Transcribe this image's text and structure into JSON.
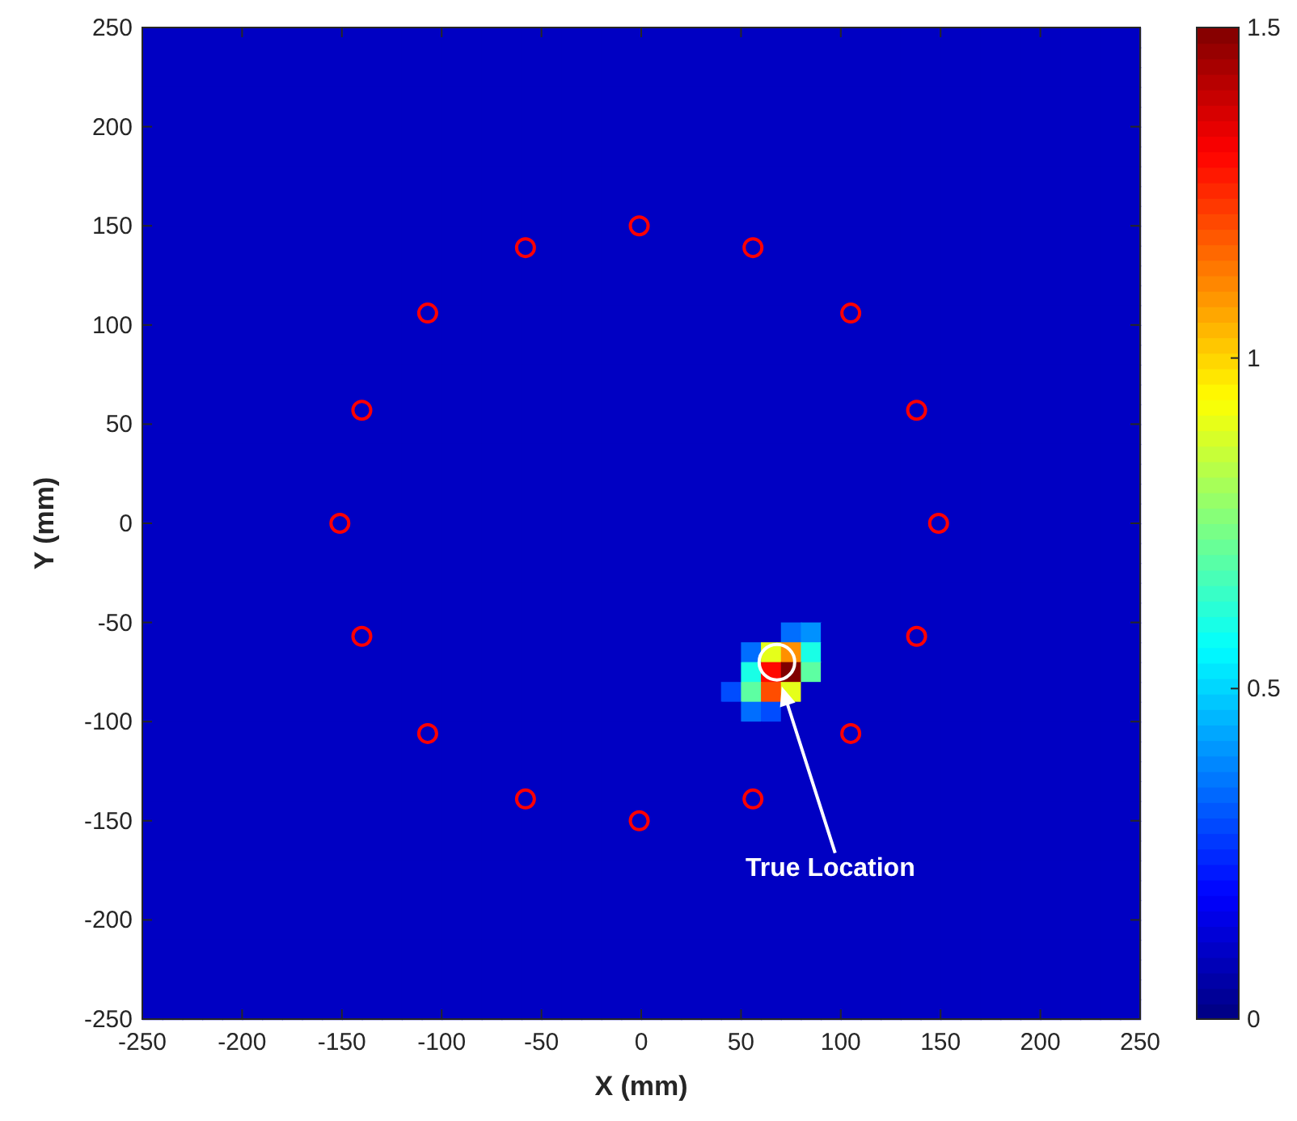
{
  "chart_data": {
    "type": "heatmap",
    "xlabel": "X (mm)",
    "ylabel": "Y (mm)",
    "x": [
      -245,
      -235,
      -225,
      -215,
      -205,
      -195,
      -185,
      -175,
      -165,
      -155,
      -145,
      -135,
      -125,
      -115,
      -105,
      -95,
      -85,
      -75,
      -65,
      -55,
      -45,
      -35,
      -25,
      -15,
      -5,
      5,
      15,
      25,
      35,
      45,
      55,
      65,
      75,
      85,
      95,
      105,
      115,
      125,
      135,
      145,
      155,
      165,
      175,
      185,
      195,
      205,
      215,
      225,
      235,
      245
    ],
    "y": [
      245,
      235,
      225,
      215,
      205,
      195,
      185,
      175,
      165,
      155,
      145,
      135,
      125,
      115,
      105,
      95,
      85,
      75,
      65,
      55,
      45,
      35,
      25,
      15,
      5,
      -5,
      -15,
      -25,
      -35,
      -45,
      -55,
      -65,
      -75,
      -85,
      -95,
      -105,
      -115,
      -125,
      -135,
      -145,
      -155,
      -165,
      -175,
      -185,
      -195,
      -205,
      -215,
      -225,
      -235,
      -245
    ],
    "xlim": [
      -250,
      250
    ],
    "xticks": [
      -250,
      -200,
      -150,
      -100,
      -50,
      0,
      50,
      100,
      150,
      200,
      250
    ],
    "ylim": [
      -250,
      250
    ],
    "yticks": [
      -250,
      -200,
      -150,
      -100,
      -50,
      0,
      50,
      100,
      150,
      200,
      250
    ],
    "clim": [
      0,
      1.5
    ],
    "cticks": [
      0,
      0.5,
      1,
      1.5
    ],
    "grid": false,
    "marker": "circle",
    "cells": [
      [
        0.1,
        0.1,
        0.1,
        0.1,
        0.1,
        0.1,
        0.1,
        0.1,
        0.1,
        0.1,
        0.1,
        0.1,
        0.1,
        0.1,
        0.1,
        0.1,
        0.1,
        0.1,
        0.1,
        0.1,
        0.1,
        0.1,
        0.1,
        0.1,
        0.1,
        0.1,
        0.1,
        0.1,
        0.1,
        0.1,
        0.1,
        0.1,
        0.1,
        0.1,
        0.1,
        0.1,
        0.1,
        0.1,
        0.1,
        0.1,
        0.1,
        0.1,
        0.1,
        0.1,
        0.1,
        0.1,
        0.1,
        0.1,
        0.1,
        0.1
      ],
      [
        0.1,
        0.1,
        0.1,
        0.1,
        0.1,
        0.1,
        0.1,
        0.1,
        0.1,
        0.1,
        0.1,
        0.1,
        0.1,
        0.1,
        0.1,
        0.1,
        0.1,
        0.1,
        0.1,
        0.1,
        0.1,
        0.1,
        0.1,
        0.1,
        0.1,
        0.1,
        0.1,
        0.1,
        0.1,
        0.1,
        0.1,
        0.1,
        0.1,
        0.1,
        0.1,
        0.1,
        0.1,
        0.1,
        0.1,
        0.1,
        0.1,
        0.1,
        0.1,
        0.1,
        0.1,
        0.1,
        0.1,
        0.1,
        0.1,
        0.1
      ],
      [
        0.1,
        0.1,
        0.1,
        0.1,
        0.1,
        0.1,
        0.1,
        0.1,
        0.1,
        0.1,
        0.1,
        0.1,
        0.1,
        0.1,
        0.1,
        0.1,
        0.1,
        0.1,
        0.1,
        0.1,
        0.1,
        0.1,
        0.1,
        0.1,
        0.1,
        0.1,
        0.1,
        0.1,
        0.1,
        0.1,
        0.1,
        0.1,
        0.1,
        0.1,
        0.1,
        0.1,
        0.1,
        0.1,
        0.1,
        0.1,
        0.1,
        0.1,
        0.1,
        0.1,
        0.1,
        0.1,
        0.1,
        0.1,
        0.1,
        0.1
      ],
      [
        0.1,
        0.1,
        0.1,
        0.1,
        0.1,
        0.1,
        0.1,
        0.1,
        0.1,
        0.1,
        0.1,
        0.1,
        0.1,
        0.1,
        0.1,
        0.1,
        0.1,
        0.1,
        0.1,
        0.1,
        0.1,
        0.1,
        0.1,
        0.1,
        0.1,
        0.1,
        0.1,
        0.1,
        0.1,
        0.1,
        0.1,
        0.1,
        0.1,
        0.1,
        0.1,
        0.1,
        0.1,
        0.1,
        0.1,
        0.1,
        0.1,
        0.1,
        0.1,
        0.1,
        0.1,
        0.1,
        0.1,
        0.1,
        0.1,
        0.1
      ],
      [
        0.1,
        0.1,
        0.1,
        0.1,
        0.1,
        0.1,
        0.1,
        0.1,
        0.1,
        0.1,
        0.1,
        0.1,
        0.1,
        0.1,
        0.1,
        0.1,
        0.1,
        0.1,
        0.1,
        0.1,
        0.1,
        0.1,
        0.1,
        0.1,
        0.1,
        0.1,
        0.1,
        0.1,
        0.1,
        0.1,
        0.1,
        0.1,
        0.1,
        0.1,
        0.1,
        0.1,
        0.1,
        0.1,
        0.1,
        0.1,
        0.1,
        0.1,
        0.1,
        0.1,
        0.1,
        0.1,
        0.1,
        0.1,
        0.1,
        0.1
      ],
      [
        0.1,
        0.1,
        0.1,
        0.1,
        0.1,
        0.1,
        0.1,
        0.1,
        0.1,
        0.1,
        0.1,
        0.1,
        0.1,
        0.1,
        0.1,
        0.1,
        0.1,
        0.1,
        0.1,
        0.1,
        0.1,
        0.1,
        0.1,
        0.1,
        0.1,
        0.1,
        0.1,
        0.1,
        0.1,
        0.1,
        0.1,
        0.1,
        0.1,
        0.1,
        0.1,
        0.1,
        0.1,
        0.1,
        0.1,
        0.1,
        0.1,
        0.1,
        0.1,
        0.1,
        0.1,
        0.1,
        0.1,
        0.1,
        0.1,
        0.1
      ],
      [
        0.1,
        0.1,
        0.1,
        0.1,
        0.1,
        0.1,
        0.1,
        0.1,
        0.1,
        0.1,
        0.1,
        0.1,
        0.1,
        0.1,
        0.1,
        0.1,
        0.1,
        0.1,
        0.1,
        0.1,
        0.1,
        0.1,
        0.1,
        0.1,
        0.1,
        0.1,
        0.1,
        0.1,
        0.1,
        0.1,
        0.1,
        0.1,
        0.1,
        0.1,
        0.1,
        0.1,
        0.1,
        0.1,
        0.1,
        0.1,
        0.1,
        0.1,
        0.1,
        0.1,
        0.1,
        0.1,
        0.1,
        0.1,
        0.1,
        0.1
      ],
      [
        0.1,
        0.1,
        0.1,
        0.1,
        0.1,
        0.1,
        0.1,
        0.1,
        0.1,
        0.1,
        0.1,
        0.1,
        0.1,
        0.1,
        0.1,
        0.1,
        0.1,
        0.1,
        0.1,
        0.1,
        0.1,
        0.1,
        0.1,
        0.1,
        0.1,
        0.1,
        0.1,
        0.1,
        0.1,
        0.1,
        0.1,
        0.1,
        0.1,
        0.1,
        0.1,
        0.1,
        0.1,
        0.1,
        0.1,
        0.1,
        0.1,
        0.1,
        0.1,
        0.1,
        0.1,
        0.1,
        0.1,
        0.1,
        0.1,
        0.1
      ],
      [
        0.1,
        0.1,
        0.1,
        0.1,
        0.1,
        0.1,
        0.1,
        0.1,
        0.1,
        0.1,
        0.1,
        0.1,
        0.1,
        0.1,
        0.1,
        0.1,
        0.1,
        0.1,
        0.1,
        0.1,
        0.1,
        0.1,
        0.1,
        0.1,
        0.1,
        0.1,
        0.1,
        0.1,
        0.1,
        0.1,
        0.1,
        0.1,
        0.1,
        0.1,
        0.1,
        0.1,
        0.1,
        0.1,
        0.1,
        0.1,
        0.1,
        0.1,
        0.1,
        0.1,
        0.1,
        0.1,
        0.1,
        0.1,
        0.1,
        0.1
      ],
      [
        0.1,
        0.1,
        0.1,
        0.1,
        0.1,
        0.1,
        0.1,
        0.1,
        0.1,
        0.1,
        0.1,
        0.1,
        0.1,
        0.1,
        0.1,
        0.1,
        0.1,
        0.1,
        0.1,
        0.1,
        0.1,
        0.1,
        0.1,
        0.1,
        0.1,
        0.1,
        0.1,
        0.1,
        0.1,
        0.1,
        0.1,
        0.1,
        0.1,
        0.1,
        0.1,
        0.1,
        0.1,
        0.1,
        0.1,
        0.1,
        0.1,
        0.1,
        0.1,
        0.1,
        0.1,
        0.1,
        0.1,
        0.1,
        0.1,
        0.1
      ],
      [
        0.1,
        0.1,
        0.1,
        0.1,
        0.1,
        0.1,
        0.1,
        0.1,
        0.1,
        0.1,
        0.1,
        0.1,
        0.1,
        0.1,
        0.1,
        0.1,
        0.1,
        0.1,
        0.1,
        0.1,
        0.1,
        0.1,
        0.1,
        0.1,
        0.1,
        0.1,
        0.1,
        0.1,
        0.1,
        0.1,
        0.1,
        0.1,
        0.1,
        0.1,
        0.1,
        0.1,
        0.1,
        0.1,
        0.1,
        0.1,
        0.1,
        0.1,
        0.1,
        0.1,
        0.1,
        0.1,
        0.1,
        0.1,
        0.1,
        0.1
      ],
      [
        0.1,
        0.1,
        0.1,
        0.1,
        0.1,
        0.1,
        0.1,
        0.1,
        0.1,
        0.1,
        0.1,
        0.1,
        0.1,
        0.1,
        0.1,
        0.1,
        0.1,
        0.1,
        0.1,
        0.1,
        0.1,
        0.1,
        0.1,
        0.1,
        0.1,
        0.1,
        0.1,
        0.1,
        0.1,
        0.1,
        0.1,
        0.1,
        0.1,
        0.1,
        0.1,
        0.1,
        0.1,
        0.1,
        0.1,
        0.1,
        0.1,
        0.1,
        0.1,
        0.1,
        0.1,
        0.1,
        0.1,
        0.1,
        0.1,
        0.1
      ],
      [
        0.1,
        0.1,
        0.1,
        0.1,
        0.1,
        0.1,
        0.1,
        0.1,
        0.1,
        0.1,
        0.1,
        0.1,
        0.1,
        0.1,
        0.1,
        0.1,
        0.1,
        0.1,
        0.1,
        0.1,
        0.1,
        0.1,
        0.1,
        0.1,
        0.1,
        0.1,
        0.1,
        0.1,
        0.1,
        0.1,
        0.1,
        0.1,
        0.1,
        0.1,
        0.1,
        0.1,
        0.1,
        0.1,
        0.1,
        0.1,
        0.1,
        0.1,
        0.1,
        0.1,
        0.1,
        0.1,
        0.1,
        0.1,
        0.1,
        0.1
      ],
      [
        0.1,
        0.1,
        0.1,
        0.1,
        0.1,
        0.1,
        0.1,
        0.1,
        0.1,
        0.1,
        0.1,
        0.1,
        0.1,
        0.1,
        0.1,
        0.1,
        0.1,
        0.1,
        0.1,
        0.1,
        0.1,
        0.1,
        0.1,
        0.1,
        0.1,
        0.1,
        0.1,
        0.1,
        0.1,
        0.1,
        0.1,
        0.1,
        0.1,
        0.1,
        0.1,
        0.1,
        0.1,
        0.1,
        0.1,
        0.1,
        0.1,
        0.1,
        0.1,
        0.1,
        0.1,
        0.1,
        0.1,
        0.1,
        0.1,
        0.1
      ],
      [
        0.1,
        0.1,
        0.1,
        0.1,
        0.1,
        0.1,
        0.1,
        0.1,
        0.1,
        0.1,
        0.1,
        0.1,
        0.1,
        0.1,
        0.1,
        0.1,
        0.1,
        0.1,
        0.1,
        0.1,
        0.1,
        0.1,
        0.1,
        0.1,
        0.1,
        0.1,
        0.1,
        0.1,
        0.1,
        0.1,
        0.1,
        0.1,
        0.1,
        0.1,
        0.1,
        0.1,
        0.1,
        0.1,
        0.1,
        0.1,
        0.1,
        0.1,
        0.1,
        0.1,
        0.1,
        0.1,
        0.1,
        0.1,
        0.1,
        0.1
      ],
      [
        0.1,
        0.1,
        0.1,
        0.1,
        0.1,
        0.1,
        0.1,
        0.1,
        0.1,
        0.1,
        0.1,
        0.1,
        0.1,
        0.1,
        0.1,
        0.1,
        0.1,
        0.1,
        0.1,
        0.1,
        0.1,
        0.1,
        0.1,
        0.1,
        0.1,
        0.1,
        0.1,
        0.1,
        0.1,
        0.1,
        0.1,
        0.1,
        0.1,
        0.1,
        0.1,
        0.1,
        0.1,
        0.1,
        0.1,
        0.1,
        0.1,
        0.1,
        0.1,
        0.1,
        0.1,
        0.1,
        0.1,
        0.1,
        0.1,
        0.1
      ],
      [
        0.1,
        0.1,
        0.1,
        0.1,
        0.1,
        0.1,
        0.1,
        0.1,
        0.1,
        0.1,
        0.1,
        0.1,
        0.1,
        0.1,
        0.1,
        0.1,
        0.1,
        0.1,
        0.1,
        0.1,
        0.1,
        0.1,
        0.1,
        0.1,
        0.1,
        0.1,
        0.1,
        0.1,
        0.1,
        0.1,
        0.1,
        0.1,
        0.1,
        0.1,
        0.1,
        0.1,
        0.1,
        0.1,
        0.1,
        0.1,
        0.1,
        0.1,
        0.1,
        0.1,
        0.1,
        0.1,
        0.1,
        0.1,
        0.1,
        0.1
      ],
      [
        0.1,
        0.1,
        0.1,
        0.1,
        0.1,
        0.1,
        0.1,
        0.1,
        0.1,
        0.1,
        0.1,
        0.1,
        0.1,
        0.1,
        0.1,
        0.1,
        0.1,
        0.1,
        0.1,
        0.1,
        0.1,
        0.1,
        0.1,
        0.1,
        0.1,
        0.1,
        0.1,
        0.1,
        0.1,
        0.1,
        0.1,
        0.1,
        0.1,
        0.1,
        0.1,
        0.1,
        0.1,
        0.1,
        0.1,
        0.1,
        0.1,
        0.1,
        0.1,
        0.1,
        0.1,
        0.1,
        0.1,
        0.1,
        0.1,
        0.1
      ],
      [
        0.1,
        0.1,
        0.1,
        0.1,
        0.1,
        0.1,
        0.1,
        0.1,
        0.1,
        0.1,
        0.1,
        0.1,
        0.1,
        0.1,
        0.1,
        0.1,
        0.1,
        0.1,
        0.1,
        0.1,
        0.1,
        0.1,
        0.1,
        0.1,
        0.1,
        0.1,
        0.1,
        0.1,
        0.1,
        0.1,
        0.1,
        0.1,
        0.1,
        0.1,
        0.1,
        0.1,
        0.1,
        0.1,
        0.1,
        0.1,
        0.1,
        0.1,
        0.1,
        0.1,
        0.1,
        0.1,
        0.1,
        0.1,
        0.1,
        0.1
      ],
      [
        0.1,
        0.1,
        0.1,
        0.1,
        0.1,
        0.1,
        0.1,
        0.1,
        0.1,
        0.1,
        0.1,
        0.1,
        0.1,
        0.1,
        0.1,
        0.1,
        0.1,
        0.1,
        0.1,
        0.1,
        0.1,
        0.1,
        0.1,
        0.1,
        0.1,
        0.1,
        0.1,
        0.1,
        0.1,
        0.1,
        0.1,
        0.1,
        0.1,
        0.1,
        0.1,
        0.1,
        0.1,
        0.1,
        0.1,
        0.1,
        0.1,
        0.1,
        0.1,
        0.1,
        0.1,
        0.1,
        0.1,
        0.1,
        0.1,
        0.1
      ],
      [
        0.1,
        0.1,
        0.1,
        0.1,
        0.1,
        0.1,
        0.1,
        0.1,
        0.1,
        0.1,
        0.1,
        0.1,
        0.1,
        0.1,
        0.1,
        0.1,
        0.1,
        0.1,
        0.1,
        0.1,
        0.1,
        0.1,
        0.1,
        0.1,
        0.1,
        0.1,
        0.1,
        0.1,
        0.1,
        0.1,
        0.1,
        0.1,
        0.1,
        0.1,
        0.1,
        0.1,
        0.1,
        0.1,
        0.1,
        0.1,
        0.1,
        0.1,
        0.1,
        0.1,
        0.1,
        0.1,
        0.1,
        0.1,
        0.1,
        0.1
      ],
      [
        0.1,
        0.1,
        0.1,
        0.1,
        0.1,
        0.1,
        0.1,
        0.1,
        0.1,
        0.1,
        0.1,
        0.1,
        0.1,
        0.1,
        0.1,
        0.1,
        0.1,
        0.1,
        0.1,
        0.1,
        0.1,
        0.1,
        0.1,
        0.1,
        0.1,
        0.1,
        0.1,
        0.1,
        0.1,
        0.1,
        0.1,
        0.1,
        0.1,
        0.1,
        0.1,
        0.1,
        0.1,
        0.1,
        0.1,
        0.1,
        0.1,
        0.1,
        0.1,
        0.1,
        0.1,
        0.1,
        0.1,
        0.1,
        0.1,
        0.1
      ],
      [
        0.1,
        0.1,
        0.1,
        0.1,
        0.1,
        0.1,
        0.1,
        0.1,
        0.1,
        0.1,
        0.1,
        0.1,
        0.1,
        0.1,
        0.1,
        0.1,
        0.1,
        0.1,
        0.1,
        0.1,
        0.1,
        0.1,
        0.1,
        0.1,
        0.1,
        0.1,
        0.1,
        0.1,
        0.1,
        0.1,
        0.1,
        0.1,
        0.1,
        0.1,
        0.1,
        0.1,
        0.1,
        0.1,
        0.1,
        0.1,
        0.1,
        0.1,
        0.1,
        0.1,
        0.1,
        0.1,
        0.1,
        0.1,
        0.1,
        0.1
      ],
      [
        0.1,
        0.1,
        0.1,
        0.1,
        0.1,
        0.1,
        0.1,
        0.1,
        0.1,
        0.1,
        0.1,
        0.1,
        0.1,
        0.1,
        0.1,
        0.1,
        0.1,
        0.1,
        0.1,
        0.1,
        0.1,
        0.1,
        0.1,
        0.1,
        0.1,
        0.1,
        0.1,
        0.1,
        0.1,
        0.1,
        0.1,
        0.1,
        0.1,
        0.1,
        0.1,
        0.1,
        0.1,
        0.1,
        0.1,
        0.1,
        0.1,
        0.1,
        0.1,
        0.1,
        0.1,
        0.1,
        0.1,
        0.1,
        0.1,
        0.1
      ],
      [
        0.1,
        0.1,
        0.1,
        0.1,
        0.1,
        0.1,
        0.1,
        0.1,
        0.1,
        0.1,
        0.1,
        0.1,
        0.1,
        0.1,
        0.1,
        0.1,
        0.1,
        0.1,
        0.1,
        0.1,
        0.1,
        0.1,
        0.1,
        0.1,
        0.1,
        0.1,
        0.1,
        0.1,
        0.1,
        0.1,
        0.1,
        0.1,
        0.1,
        0.1,
        0.1,
        0.1,
        0.1,
        0.1,
        0.1,
        0.1,
        0.1,
        0.1,
        0.1,
        0.1,
        0.1,
        0.1,
        0.1,
        0.1,
        0.1,
        0.1
      ],
      [
        0.1,
        0.1,
        0.1,
        0.1,
        0.1,
        0.1,
        0.1,
        0.1,
        0.1,
        0.1,
        0.1,
        0.1,
        0.1,
        0.1,
        0.1,
        0.1,
        0.1,
        0.1,
        0.1,
        0.1,
        0.1,
        0.1,
        0.1,
        0.1,
        0.1,
        0.1,
        0.1,
        0.1,
        0.1,
        0.1,
        0.1,
        0.1,
        0.1,
        0.1,
        0.1,
        0.1,
        0.1,
        0.1,
        0.1,
        0.1,
        0.1,
        0.1,
        0.1,
        0.1,
        0.1,
        0.1,
        0.1,
        0.1,
        0.1,
        0.1
      ],
      [
        0.1,
        0.1,
        0.1,
        0.1,
        0.1,
        0.1,
        0.1,
        0.1,
        0.1,
        0.1,
        0.1,
        0.1,
        0.1,
        0.1,
        0.1,
        0.1,
        0.1,
        0.1,
        0.1,
        0.1,
        0.1,
        0.1,
        0.1,
        0.1,
        0.1,
        0.1,
        0.1,
        0.1,
        0.1,
        0.1,
        0.1,
        0.1,
        0.1,
        0.1,
        0.1,
        0.1,
        0.1,
        0.1,
        0.1,
        0.1,
        0.1,
        0.1,
        0.1,
        0.1,
        0.1,
        0.1,
        0.1,
        0.1,
        0.1,
        0.1
      ],
      [
        0.1,
        0.1,
        0.1,
        0.1,
        0.1,
        0.1,
        0.1,
        0.1,
        0.1,
        0.1,
        0.1,
        0.1,
        0.1,
        0.1,
        0.1,
        0.1,
        0.1,
        0.1,
        0.1,
        0.1,
        0.1,
        0.1,
        0.1,
        0.1,
        0.1,
        0.1,
        0.1,
        0.1,
        0.1,
        0.1,
        0.1,
        0.1,
        0.1,
        0.1,
        0.1,
        0.1,
        0.1,
        0.1,
        0.1,
        0.1,
        0.1,
        0.1,
        0.1,
        0.1,
        0.1,
        0.1,
        0.1,
        0.1,
        0.1,
        0.1
      ],
      [
        0.1,
        0.1,
        0.1,
        0.1,
        0.1,
        0.1,
        0.1,
        0.1,
        0.1,
        0.1,
        0.1,
        0.1,
        0.1,
        0.1,
        0.1,
        0.1,
        0.1,
        0.1,
        0.1,
        0.1,
        0.1,
        0.1,
        0.1,
        0.1,
        0.1,
        0.1,
        0.1,
        0.1,
        0.1,
        0.1,
        0.1,
        0.1,
        0.1,
        0.1,
        0.1,
        0.1,
        0.1,
        0.1,
        0.1,
        0.1,
        0.1,
        0.1,
        0.1,
        0.1,
        0.1,
        0.1,
        0.1,
        0.1,
        0.1,
        0.1
      ],
      [
        0.1,
        0.1,
        0.1,
        0.1,
        0.1,
        0.1,
        0.1,
        0.1,
        0.1,
        0.1,
        0.1,
        0.1,
        0.1,
        0.1,
        0.1,
        0.1,
        0.1,
        0.1,
        0.1,
        0.1,
        0.1,
        0.1,
        0.1,
        0.1,
        0.1,
        0.1,
        0.1,
        0.1,
        0.1,
        0.1,
        0.1,
        0.1,
        0.1,
        0.1,
        0.1,
        0.1,
        0.1,
        0.1,
        0.1,
        0.1,
        0.1,
        0.1,
        0.1,
        0.1,
        0.1,
        0.1,
        0.1,
        0.1,
        0.1,
        0.1
      ],
      [
        0.1,
        0.1,
        0.1,
        0.1,
        0.1,
        0.1,
        0.1,
        0.1,
        0.1,
        0.1,
        0.1,
        0.1,
        0.1,
        0.1,
        0.1,
        0.1,
        0.1,
        0.1,
        0.1,
        0.1,
        0.1,
        0.1,
        0.1,
        0.1,
        0.1,
        0.1,
        0.1,
        0.1,
        0.1,
        0.1,
        0.1,
        0.1,
        0.35,
        0.4,
        0.1,
        0.1,
        0.1,
        0.1,
        0.1,
        0.1,
        0.1,
        0.1,
        0.1,
        0.1,
        0.1,
        0.1,
        0.1,
        0.1,
        0.1,
        0.1
      ],
      [
        0.1,
        0.1,
        0.1,
        0.1,
        0.1,
        0.1,
        0.1,
        0.1,
        0.1,
        0.1,
        0.1,
        0.1,
        0.1,
        0.1,
        0.1,
        0.1,
        0.1,
        0.1,
        0.1,
        0.1,
        0.1,
        0.1,
        0.1,
        0.1,
        0.1,
        0.1,
        0.1,
        0.1,
        0.1,
        0.1,
        0.35,
        0.9,
        1.1,
        0.6,
        0.1,
        0.1,
        0.1,
        0.1,
        0.1,
        0.1,
        0.1,
        0.1,
        0.1,
        0.1,
        0.1,
        0.1,
        0.1,
        0.1,
        0.1,
        0.1
      ],
      [
        0.1,
        0.1,
        0.1,
        0.1,
        0.1,
        0.1,
        0.1,
        0.1,
        0.1,
        0.1,
        0.1,
        0.1,
        0.1,
        0.1,
        0.1,
        0.1,
        0.1,
        0.1,
        0.1,
        0.1,
        0.1,
        0.1,
        0.1,
        0.1,
        0.1,
        0.1,
        0.1,
        0.1,
        0.1,
        0.1,
        0.6,
        1.3,
        1.5,
        0.7,
        0.1,
        0.1,
        0.1,
        0.1,
        0.1,
        0.1,
        0.1,
        0.1,
        0.1,
        0.1,
        0.1,
        0.1,
        0.1,
        0.1,
        0.1,
        0.1
      ],
      [
        0.1,
        0.1,
        0.1,
        0.1,
        0.1,
        0.1,
        0.1,
        0.1,
        0.1,
        0.1,
        0.1,
        0.1,
        0.1,
        0.1,
        0.1,
        0.1,
        0.1,
        0.1,
        0.1,
        0.1,
        0.1,
        0.1,
        0.1,
        0.1,
        0.1,
        0.1,
        0.1,
        0.1,
        0.1,
        0.3,
        0.7,
        1.2,
        0.9,
        0.1,
        0.1,
        0.1,
        0.1,
        0.1,
        0.1,
        0.1,
        0.1,
        0.1,
        0.1,
        0.1,
        0.1,
        0.1,
        0.1,
        0.1,
        0.1,
        0.1
      ],
      [
        0.1,
        0.1,
        0.1,
        0.1,
        0.1,
        0.1,
        0.1,
        0.1,
        0.1,
        0.1,
        0.1,
        0.1,
        0.1,
        0.1,
        0.1,
        0.1,
        0.1,
        0.1,
        0.1,
        0.1,
        0.1,
        0.1,
        0.1,
        0.1,
        0.1,
        0.1,
        0.1,
        0.1,
        0.1,
        0.1,
        0.35,
        0.3,
        0.1,
        0.1,
        0.1,
        0.1,
        0.1,
        0.1,
        0.1,
        0.1,
        0.1,
        0.1,
        0.1,
        0.1,
        0.1,
        0.1,
        0.1,
        0.1,
        0.1,
        0.1
      ],
      [
        0.1,
        0.1,
        0.1,
        0.1,
        0.1,
        0.1,
        0.1,
        0.1,
        0.1,
        0.1,
        0.1,
        0.1,
        0.1,
        0.1,
        0.1,
        0.1,
        0.1,
        0.1,
        0.1,
        0.1,
        0.1,
        0.1,
        0.1,
        0.1,
        0.1,
        0.1,
        0.1,
        0.1,
        0.1,
        0.1,
        0.1,
        0.1,
        0.1,
        0.1,
        0.1,
        0.1,
        0.1,
        0.1,
        0.1,
        0.1,
        0.1,
        0.1,
        0.1,
        0.1,
        0.1,
        0.1,
        0.1,
        0.1,
        0.1,
        0.1
      ],
      [
        0.1,
        0.1,
        0.1,
        0.1,
        0.1,
        0.1,
        0.1,
        0.1,
        0.1,
        0.1,
        0.1,
        0.1,
        0.1,
        0.1,
        0.1,
        0.1,
        0.1,
        0.1,
        0.1,
        0.1,
        0.1,
        0.1,
        0.1,
        0.1,
        0.1,
        0.1,
        0.1,
        0.1,
        0.1,
        0.1,
        0.1,
        0.1,
        0.1,
        0.1,
        0.1,
        0.1,
        0.1,
        0.1,
        0.1,
        0.1,
        0.1,
        0.1,
        0.1,
        0.1,
        0.1,
        0.1,
        0.1,
        0.1,
        0.1,
        0.1
      ],
      [
        0.1,
        0.1,
        0.1,
        0.1,
        0.1,
        0.1,
        0.1,
        0.1,
        0.1,
        0.1,
        0.1,
        0.1,
        0.1,
        0.1,
        0.1,
        0.1,
        0.1,
        0.1,
        0.1,
        0.1,
        0.1,
        0.1,
        0.1,
        0.1,
        0.1,
        0.1,
        0.1,
        0.1,
        0.1,
        0.1,
        0.1,
        0.1,
        0.1,
        0.1,
        0.1,
        0.1,
        0.1,
        0.1,
        0.1,
        0.1,
        0.1,
        0.1,
        0.1,
        0.1,
        0.1,
        0.1,
        0.1,
        0.1,
        0.1,
        0.1
      ],
      [
        0.1,
        0.1,
        0.1,
        0.1,
        0.1,
        0.1,
        0.1,
        0.1,
        0.1,
        0.1,
        0.1,
        0.1,
        0.1,
        0.1,
        0.1,
        0.1,
        0.1,
        0.1,
        0.1,
        0.1,
        0.1,
        0.1,
        0.1,
        0.1,
        0.1,
        0.1,
        0.1,
        0.1,
        0.1,
        0.1,
        0.1,
        0.1,
        0.1,
        0.1,
        0.1,
        0.1,
        0.1,
        0.1,
        0.1,
        0.1,
        0.1,
        0.1,
        0.1,
        0.1,
        0.1,
        0.1,
        0.1,
        0.1,
        0.1,
        0.1
      ],
      [
        0.1,
        0.1,
        0.1,
        0.1,
        0.1,
        0.1,
        0.1,
        0.1,
        0.1,
        0.1,
        0.1,
        0.1,
        0.1,
        0.1,
        0.1,
        0.1,
        0.1,
        0.1,
        0.1,
        0.1,
        0.1,
        0.1,
        0.1,
        0.1,
        0.1,
        0.1,
        0.1,
        0.1,
        0.1,
        0.1,
        0.1,
        0.1,
        0.1,
        0.1,
        0.1,
        0.1,
        0.1,
        0.1,
        0.1,
        0.1,
        0.1,
        0.1,
        0.1,
        0.1,
        0.1,
        0.1,
        0.1,
        0.1,
        0.1,
        0.1
      ],
      [
        0.1,
        0.1,
        0.1,
        0.1,
        0.1,
        0.1,
        0.1,
        0.1,
        0.1,
        0.1,
        0.1,
        0.1,
        0.1,
        0.1,
        0.1,
        0.1,
        0.1,
        0.1,
        0.1,
        0.1,
        0.1,
        0.1,
        0.1,
        0.1,
        0.1,
        0.1,
        0.1,
        0.1,
        0.1,
        0.1,
        0.1,
        0.1,
        0.1,
        0.1,
        0.1,
        0.1,
        0.1,
        0.1,
        0.1,
        0.1,
        0.1,
        0.1,
        0.1,
        0.1,
        0.1,
        0.1,
        0.1,
        0.1,
        0.1,
        0.1
      ],
      [
        0.1,
        0.1,
        0.1,
        0.1,
        0.1,
        0.1,
        0.1,
        0.1,
        0.1,
        0.1,
        0.1,
        0.1,
        0.1,
        0.1,
        0.1,
        0.1,
        0.1,
        0.1,
        0.1,
        0.1,
        0.1,
        0.1,
        0.1,
        0.1,
        0.1,
        0.1,
        0.1,
        0.1,
        0.1,
        0.1,
        0.1,
        0.1,
        0.1,
        0.1,
        0.1,
        0.1,
        0.1,
        0.1,
        0.1,
        0.1,
        0.1,
        0.1,
        0.1,
        0.1,
        0.1,
        0.1,
        0.1,
        0.1,
        0.1,
        0.1
      ],
      [
        0.1,
        0.1,
        0.1,
        0.1,
        0.1,
        0.1,
        0.1,
        0.1,
        0.1,
        0.1,
        0.1,
        0.1,
        0.1,
        0.1,
        0.1,
        0.1,
        0.1,
        0.1,
        0.1,
        0.1,
        0.1,
        0.1,
        0.1,
        0.1,
        0.1,
        0.1,
        0.1,
        0.1,
        0.1,
        0.1,
        0.1,
        0.1,
        0.1,
        0.1,
        0.1,
        0.1,
        0.1,
        0.1,
        0.1,
        0.1,
        0.1,
        0.1,
        0.1,
        0.1,
        0.1,
        0.1,
        0.1,
        0.1,
        0.1,
        0.1
      ],
      [
        0.1,
        0.1,
        0.1,
        0.1,
        0.1,
        0.1,
        0.1,
        0.1,
        0.1,
        0.1,
        0.1,
        0.1,
        0.1,
        0.1,
        0.1,
        0.1,
        0.1,
        0.1,
        0.1,
        0.1,
        0.1,
        0.1,
        0.1,
        0.1,
        0.1,
        0.1,
        0.1,
        0.1,
        0.1,
        0.1,
        0.1,
        0.1,
        0.1,
        0.1,
        0.1,
        0.1,
        0.1,
        0.1,
        0.1,
        0.1,
        0.1,
        0.1,
        0.1,
        0.1,
        0.1,
        0.1,
        0.1,
        0.1,
        0.1,
        0.1
      ],
      [
        0.1,
        0.1,
        0.1,
        0.1,
        0.1,
        0.1,
        0.1,
        0.1,
        0.1,
        0.1,
        0.1,
        0.1,
        0.1,
        0.1,
        0.1,
        0.1,
        0.1,
        0.1,
        0.1,
        0.1,
        0.1,
        0.1,
        0.1,
        0.1,
        0.1,
        0.1,
        0.1,
        0.1,
        0.1,
        0.1,
        0.1,
        0.1,
        0.1,
        0.1,
        0.1,
        0.1,
        0.1,
        0.1,
        0.1,
        0.1,
        0.1,
        0.1,
        0.1,
        0.1,
        0.1,
        0.1,
        0.1,
        0.1,
        0.1,
        0.1
      ],
      [
        0.1,
        0.1,
        0.1,
        0.1,
        0.1,
        0.1,
        0.1,
        0.1,
        0.1,
        0.1,
        0.1,
        0.1,
        0.1,
        0.1,
        0.1,
        0.1,
        0.1,
        0.1,
        0.1,
        0.1,
        0.1,
        0.1,
        0.1,
        0.1,
        0.1,
        0.1,
        0.1,
        0.1,
        0.1,
        0.1,
        0.1,
        0.1,
        0.1,
        0.1,
        0.1,
        0.1,
        0.1,
        0.1,
        0.1,
        0.1,
        0.1,
        0.1,
        0.1,
        0.1,
        0.1,
        0.1,
        0.1,
        0.1,
        0.1,
        0.1
      ],
      [
        0.1,
        0.1,
        0.1,
        0.1,
        0.1,
        0.1,
        0.1,
        0.1,
        0.1,
        0.1,
        0.1,
        0.1,
        0.1,
        0.1,
        0.1,
        0.1,
        0.1,
        0.1,
        0.1,
        0.1,
        0.1,
        0.1,
        0.1,
        0.1,
        0.1,
        0.1,
        0.1,
        0.1,
        0.1,
        0.1,
        0.1,
        0.1,
        0.1,
        0.1,
        0.1,
        0.1,
        0.1,
        0.1,
        0.1,
        0.1,
        0.1,
        0.1,
        0.1,
        0.1,
        0.1,
        0.1,
        0.1,
        0.1,
        0.1,
        0.1
      ],
      [
        0.1,
        0.1,
        0.1,
        0.1,
        0.1,
        0.1,
        0.1,
        0.1,
        0.1,
        0.1,
        0.1,
        0.1,
        0.1,
        0.1,
        0.1,
        0.1,
        0.1,
        0.1,
        0.1,
        0.1,
        0.1,
        0.1,
        0.1,
        0.1,
        0.1,
        0.1,
        0.1,
        0.1,
        0.1,
        0.1,
        0.1,
        0.1,
        0.1,
        0.1,
        0.1,
        0.1,
        0.1,
        0.1,
        0.1,
        0.1,
        0.1,
        0.1,
        0.1,
        0.1,
        0.1,
        0.1,
        0.1,
        0.1,
        0.1,
        0.1
      ],
      [
        0.1,
        0.1,
        0.1,
        0.1,
        0.1,
        0.1,
        0.1,
        0.1,
        0.1,
        0.1,
        0.1,
        0.1,
        0.1,
        0.1,
        0.1,
        0.1,
        0.1,
        0.1,
        0.1,
        0.1,
        0.1,
        0.1,
        0.1,
        0.1,
        0.1,
        0.1,
        0.1,
        0.1,
        0.1,
        0.1,
        0.1,
        0.1,
        0.1,
        0.1,
        0.1,
        0.1,
        0.1,
        0.1,
        0.1,
        0.1,
        0.1,
        0.1,
        0.1,
        0.1,
        0.1,
        0.1,
        0.1,
        0.1,
        0.1,
        0.1
      ],
      [
        0.1,
        0.1,
        0.1,
        0.1,
        0.1,
        0.1,
        0.1,
        0.1,
        0.1,
        0.1,
        0.1,
        0.1,
        0.1,
        0.1,
        0.1,
        0.1,
        0.1,
        0.1,
        0.1,
        0.1,
        0.1,
        0.1,
        0.1,
        0.1,
        0.1,
        0.1,
        0.1,
        0.1,
        0.1,
        0.1,
        0.1,
        0.1,
        0.1,
        0.1,
        0.1,
        0.1,
        0.1,
        0.1,
        0.1,
        0.1,
        0.1,
        0.1,
        0.1,
        0.1,
        0.1,
        0.1,
        0.1,
        0.1,
        0.1,
        0.1
      ]
    ],
    "series": [
      {
        "type": "scatter",
        "color": "#ff0000",
        "x": [
          -1,
          56,
          105,
          138,
          149,
          138,
          105,
          56,
          -1,
          -58,
          -107,
          -140,
          -151,
          -140,
          -107,
          -58
        ],
        "values": [
          150,
          139,
          106,
          57,
          0,
          -57,
          -106,
          -139,
          -150,
          -139,
          -106,
          -57,
          0,
          57,
          106,
          139
        ]
      },
      {
        "type": "scatter",
        "color": "#ffffff",
        "x": [
          68
        ],
        "values": [
          -70
        ]
      }
    ],
    "annotations": [
      "True Location"
    ]
  }
}
